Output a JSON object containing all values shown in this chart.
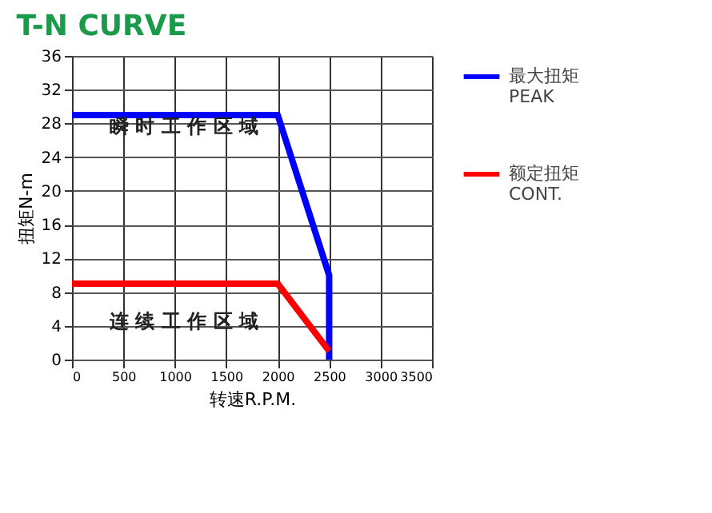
{
  "chart_data": {
    "type": "line",
    "title": "T-N CURVE",
    "xlabel": "转速R.P.M.",
    "ylabel": "扭矩N-m",
    "xlim": [
      0,
      3500
    ],
    "xticks": [
      0,
      500,
      1000,
      1500,
      2000,
      2500,
      3000,
      3500
    ],
    "ylim": [
      0,
      36
    ],
    "yticks": [
      0,
      4,
      8,
      12,
      16,
      20,
      24,
      28,
      32,
      36
    ],
    "grid": true,
    "legend": "right",
    "line_style": "solid",
    "marker": "none",
    "series": [
      {
        "name": "最大扭矩\nPEAK",
        "color": "#0000ff",
        "x": [
          0,
          2000,
          2500,
          2500
        ],
        "values": [
          29,
          29,
          10,
          0
        ]
      },
      {
        "name": "额定扭矩\nCONT.",
        "color": "#ff0000",
        "x": [
          0,
          2000,
          2500
        ],
        "values": [
          9,
          9,
          1
        ]
      }
    ],
    "annotations": [
      "瞬 时 工 作 区 域",
      "连 续 工 作 区 域"
    ]
  }
}
